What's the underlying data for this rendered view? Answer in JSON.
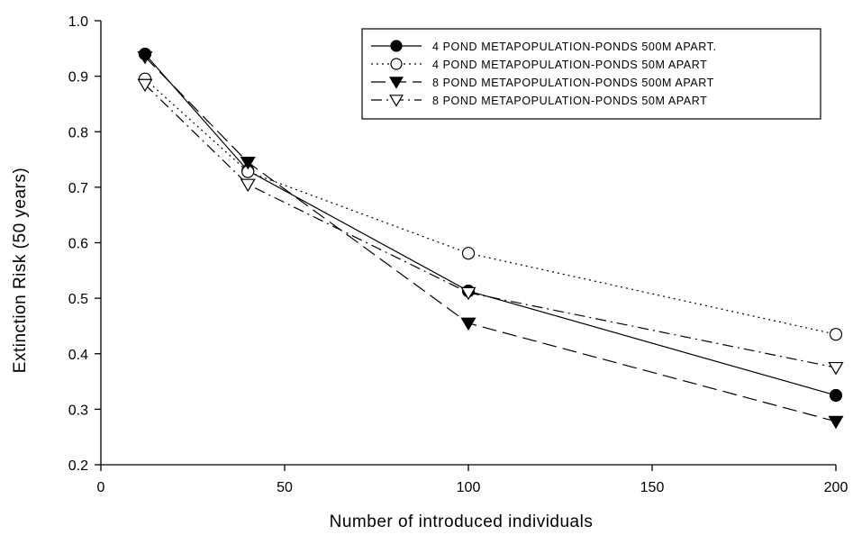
{
  "chart_data": {
    "type": "line",
    "xlabel": "Number of introduced individuals",
    "ylabel": "Extinction Risk (50 years)",
    "xlim": [
      0,
      200
    ],
    "ylim": [
      0.2,
      1.0
    ],
    "x_ticks": [
      "0",
      "50",
      "100",
      "150",
      "200"
    ],
    "y_ticks": [
      "0.2",
      "0.3",
      "0.4",
      "0.5",
      "0.6",
      "0.7",
      "0.8",
      "0.9",
      "1.0"
    ],
    "x_tick_values": [
      0,
      50,
      100,
      150,
      200
    ],
    "y_tick_values": [
      0.2,
      0.3,
      0.4,
      0.5,
      0.6,
      0.7,
      0.8,
      0.9,
      1.0
    ],
    "grid": false,
    "legend_position": "top-right",
    "series": [
      {
        "name": "4 POND METAPOPULATION-PONDS 500M APART.",
        "x": [
          12,
          40,
          100,
          200
        ],
        "values": [
          0.94,
          0.73,
          0.513,
          0.325
        ],
        "marker": "filled-circle",
        "line_style": "solid"
      },
      {
        "name": "4 POND METAPOPULATION-PONDS 50M APART",
        "x": [
          12,
          40,
          100,
          200
        ],
        "values": [
          0.895,
          0.728,
          0.581,
          0.435
        ],
        "marker": "open-circle",
        "line_style": "dotted"
      },
      {
        "name": "8 POND METAPOPULATION-PONDS 500M APART",
        "x": [
          12,
          40,
          100,
          200
        ],
        "values": [
          0.935,
          0.745,
          0.455,
          0.278
        ],
        "marker": "filled-triangle-down",
        "line_style": "dashed"
      },
      {
        "name": "8 POND METAPOPULATION-PONDS 50M APART",
        "x": [
          12,
          40,
          100,
          200
        ],
        "values": [
          0.885,
          0.705,
          0.51,
          0.375
        ],
        "marker": "open-triangle-down",
        "line_style": "dash-dot"
      }
    ]
  }
}
